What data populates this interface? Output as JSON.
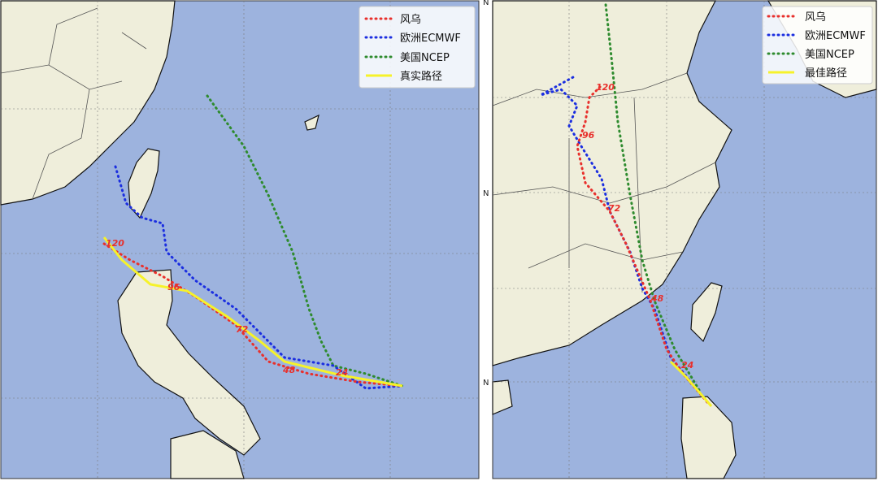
{
  "panels": [
    {
      "legend": [
        "风乌",
        "欧洲ECMWF",
        "美国NCEP",
        "真实路径"
      ],
      "hour_labels": [
        "120",
        "96",
        "72",
        "48",
        "24"
      ]
    },
    {
      "legend": [
        "风乌",
        "欧洲ECMWF",
        "美国NCEP",
        "最佳路径"
      ],
      "hour_labels": [
        "120",
        "96",
        "72",
        "48",
        "24"
      ],
      "lat_labels": [
        "N",
        "N",
        "N"
      ]
    }
  ]
}
